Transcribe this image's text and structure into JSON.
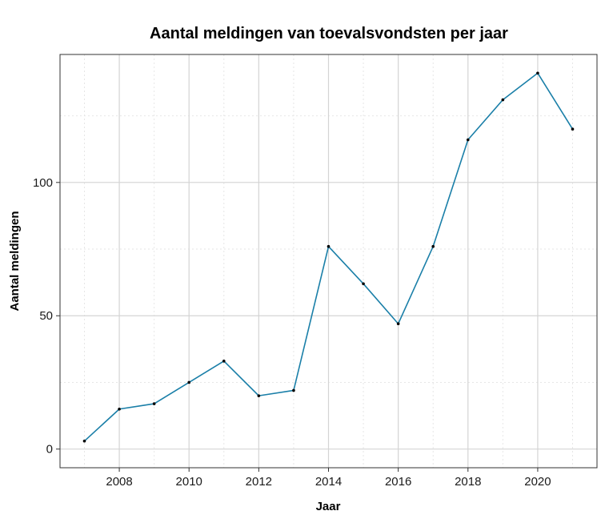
{
  "chart_data": {
    "type": "line",
    "title": "Aantal meldingen van toevalsvondsten per jaar",
    "xlabel": "Jaar",
    "ylabel": "Aantal meldingen",
    "x": [
      2007,
      2008,
      2009,
      2010,
      2011,
      2012,
      2013,
      2014,
      2015,
      2016,
      2017,
      2018,
      2019,
      2020,
      2021
    ],
    "series": [
      {
        "values": [
          3,
          15,
          17,
          25,
          33,
          20,
          22,
          76,
          62,
          47,
          76,
          116,
          131,
          141,
          120
        ]
      }
    ],
    "xlim": [
      2006.3,
      2021.7
    ],
    "ylim": [
      -7,
      148
    ],
    "xticks": [
      2008,
      2010,
      2012,
      2014,
      2016,
      2018,
      2020
    ],
    "xtick_labels": [
      "2008",
      "2010",
      "2012",
      "2014",
      "2016",
      "2018",
      "2020"
    ],
    "xminor": [
      2007,
      2009,
      2011,
      2013,
      2015,
      2017,
      2019,
      2021
    ],
    "yticks": [
      0,
      50,
      100
    ],
    "ytick_labels": [
      "0",
      "50",
      "100"
    ],
    "yminor": [
      25,
      75,
      125
    ],
    "grid": true,
    "legend": "none",
    "colors": {
      "line": "#1a7fa8",
      "point": "#000000",
      "grid_major": "#d4d4d4",
      "grid_minor": "#e6e6e6",
      "panel_border": "#333333"
    }
  }
}
